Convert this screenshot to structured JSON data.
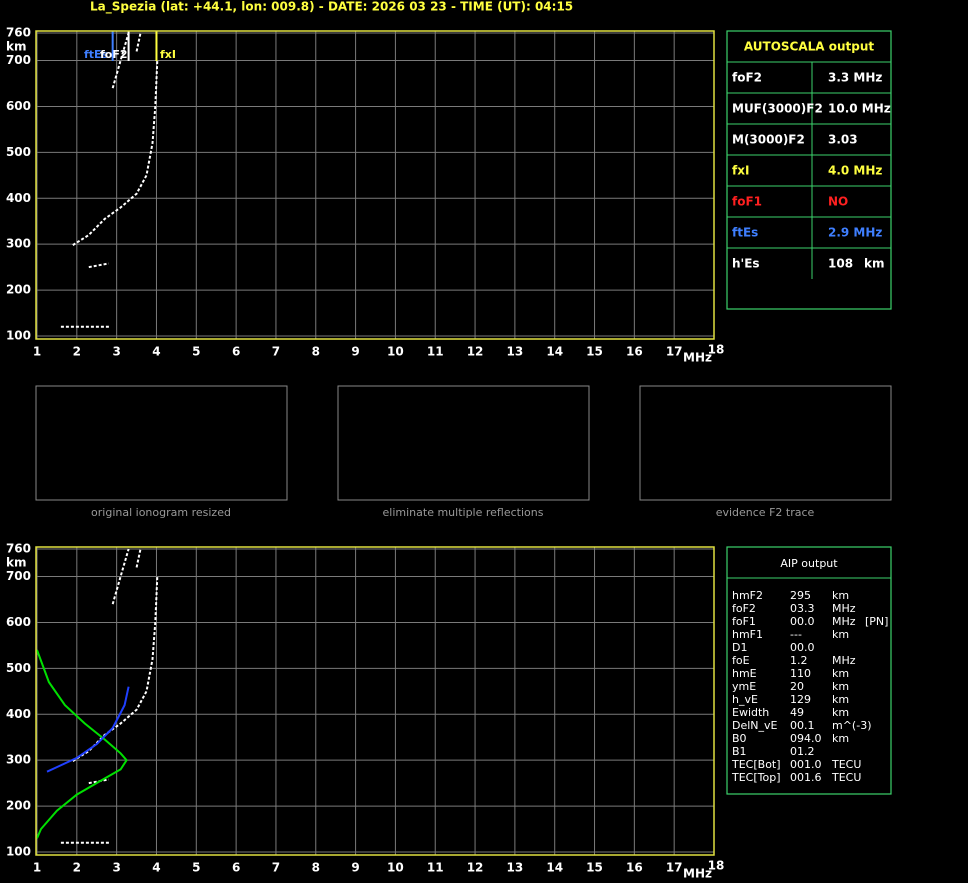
{
  "title": "La_Spezia (lat: +44.1, lon: 009.8) - DATE: 2026 03 23 - TIME (UT): 04:15",
  "chart_data": [
    {
      "type": "line",
      "x_label": "MHz",
      "y_label": "km",
      "xlim": [
        1,
        18
      ],
      "xticks": [
        1,
        2,
        3,
        4,
        5,
        6,
        7,
        8,
        9,
        10,
        11,
        12,
        13,
        14,
        15,
        16,
        17,
        18
      ],
      "ylim": [
        100,
        760
      ],
      "yticks": [
        100,
        200,
        300,
        400,
        500,
        600,
        700,
        760
      ],
      "grid": true,
      "series": [
        {
          "color": "#ffffff",
          "x": [
            1.9,
            2.3,
            2.7,
            3.1,
            3.5,
            3.75,
            3.9,
            3.97,
            4.02
          ],
          "values": [
            298,
            320,
            355,
            380,
            410,
            450,
            520,
            600,
            700
          ]
        },
        {
          "color": "#ffffff",
          "x": [
            2.9,
            3.1,
            3.3
          ],
          "values": [
            640,
            700,
            760
          ]
        },
        {
          "color": "#ffffff",
          "x": [
            3.5,
            3.6
          ],
          "values": [
            720,
            760
          ]
        },
        {
          "color": "#ffffff",
          "x": [
            2.3,
            2.8
          ],
          "values": [
            250,
            258
          ]
        },
        {
          "color": "#ffffff",
          "x": [
            1.6,
            2.85
          ],
          "values": [
            120,
            120
          ]
        }
      ],
      "markers": [
        {
          "label": "ftEs",
          "value": 2.9,
          "color": "#3f7fff"
        },
        {
          "label": "foF2",
          "value": 3.3,
          "color": "#ffffff"
        },
        {
          "label": "fxI",
          "value": 4.0,
          "color": "#ffff40"
        }
      ]
    },
    {
      "type": "line",
      "x_label": "MHz",
      "y_label": "km",
      "xlim": [
        1,
        18
      ],
      "xticks": [
        1,
        2,
        3,
        4,
        5,
        6,
        7,
        8,
        9,
        10,
        11,
        12,
        13,
        14,
        15,
        16,
        17,
        18
      ],
      "ylim": [
        100,
        760
      ],
      "yticks": [
        100,
        200,
        300,
        400,
        500,
        600,
        700,
        760
      ],
      "grid": true,
      "series": [
        {
          "color": "#ffffff",
          "x": [
            1.9,
            2.3,
            2.7,
            3.1,
            3.5,
            3.75,
            3.9,
            3.97,
            4.02
          ],
          "values": [
            298,
            320,
            355,
            380,
            410,
            450,
            520,
            600,
            700
          ]
        },
        {
          "color": "#ffffff",
          "x": [
            2.9,
            3.1,
            3.3
          ],
          "values": [
            640,
            700,
            760
          ]
        },
        {
          "color": "#ffffff",
          "x": [
            3.5,
            3.6
          ],
          "values": [
            720,
            760
          ]
        },
        {
          "color": "#ffffff",
          "x": [
            2.3,
            2.8
          ],
          "values": [
            250,
            258
          ]
        },
        {
          "color": "#ffffff",
          "x": [
            1.6,
            2.85
          ],
          "values": [
            120,
            120
          ]
        },
        {
          "color": "#00e000",
          "x": [
            1.0,
            1.3,
            1.7,
            2.2,
            2.7,
            3.1,
            3.25,
            3.1,
            2.6,
            2.0,
            1.5,
            1.1,
            1.0
          ],
          "values": [
            540,
            470,
            420,
            380,
            345,
            315,
            300,
            280,
            255,
            225,
            190,
            150,
            130
          ]
        },
        {
          "color": "#2040ff",
          "x": [
            1.25,
            1.5,
            2.0,
            2.5,
            2.9,
            3.2,
            3.3
          ],
          "values": [
            275,
            285,
            305,
            335,
            370,
            420,
            460
          ]
        }
      ]
    }
  ],
  "thumbnails": [
    "original ionogram resized",
    "eliminate multiple reflections",
    "evidence F2 trace"
  ],
  "autoscala": {
    "title": "AUTOSCALA output",
    "rows": [
      {
        "label": "foF2",
        "value": "3.3 MHz",
        "color": "#ffffff"
      },
      {
        "label": "MUF(3000)F2",
        "value": "10.0 MHz",
        "color": "#ffffff"
      },
      {
        "label": "M(3000)F2",
        "value": "3.03",
        "color": "#ffffff"
      },
      {
        "label": "fxI",
        "value": "4.0 MHz",
        "color": "#ffff40"
      },
      {
        "label": "foF1",
        "value": "NO",
        "color": "#ff2020"
      },
      {
        "label": "ftEs",
        "value": "2.9 MHz",
        "color": "#3f7fff"
      },
      {
        "label": "h'Es",
        "value": "108",
        "unit": "km",
        "color": "#ffffff"
      }
    ]
  },
  "aip": {
    "title": "AIP output",
    "rows": [
      [
        "hmF2",
        "295",
        "km"
      ],
      [
        "foF2",
        "03.3",
        "MHz"
      ],
      [
        "foF1",
        "00.0",
        "MHz",
        "[PN]"
      ],
      [
        "hmF1",
        "---",
        "km"
      ],
      [
        "D1",
        "00.0"
      ],
      [
        "foE",
        "1.2",
        "MHz"
      ],
      [
        "hmE",
        "110",
        "km"
      ],
      [
        "ymE",
        "20",
        "km"
      ],
      [
        "h_vE",
        "129",
        "km"
      ],
      [
        "Ewidth",
        "49",
        "km"
      ],
      [
        "DelN_vE",
        "00.1",
        "m^(-3)"
      ],
      [
        "B0",
        "094.0",
        "km"
      ],
      [
        "B1",
        "01.2"
      ],
      [
        "TEC[Bot]",
        "001.0",
        "TECU"
      ],
      [
        "TEC[Top]",
        "001.6",
        "TECU"
      ]
    ]
  }
}
